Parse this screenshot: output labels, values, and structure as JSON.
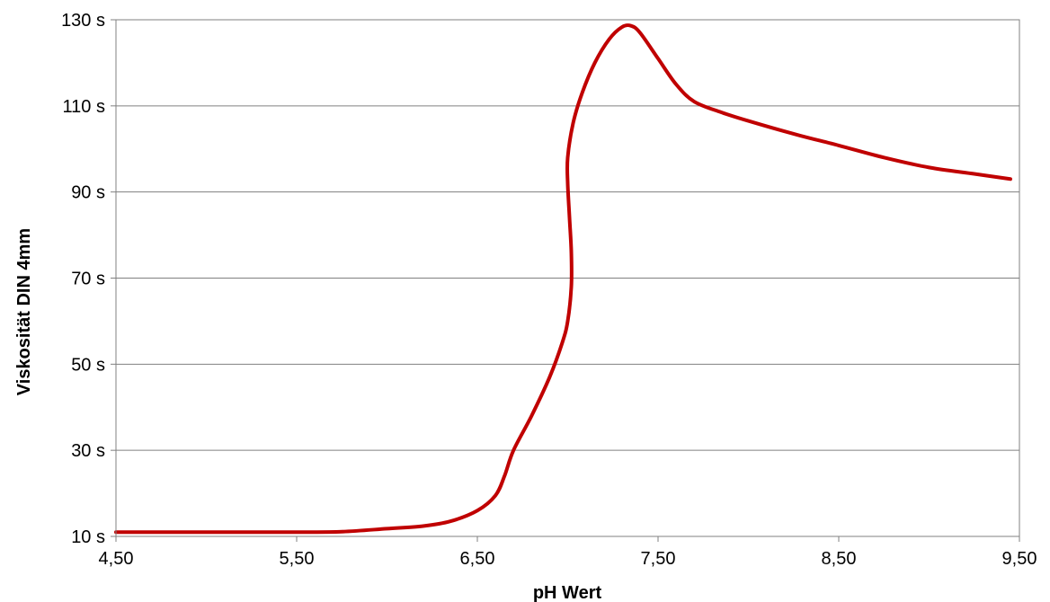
{
  "chart_data": {
    "type": "line",
    "title": "",
    "xlabel": "pH Wert",
    "ylabel": "Viskosität DIN 4mm",
    "xlim": [
      4.5,
      9.5
    ],
    "ylim": [
      10,
      130
    ],
    "x_ticks": [
      4.5,
      5.5,
      6.5,
      7.5,
      8.5,
      9.5
    ],
    "x_tick_labels": [
      "4,50",
      "5,50",
      "6,50",
      "7,50",
      "8,50",
      "9,50"
    ],
    "y_ticks": [
      10,
      30,
      50,
      70,
      90,
      110,
      130
    ],
    "y_tick_labels": [
      "10 s",
      "30 s",
      "50 s",
      "70 s",
      "90 s",
      "110 s",
      "130 s"
    ],
    "grid": "horizontal",
    "legend": "none",
    "series": [
      {
        "color": "#c00000",
        "points": [
          [
            4.5,
            11.0
          ],
          [
            5.0,
            11.0
          ],
          [
            5.5,
            11.0
          ],
          [
            5.75,
            11.1
          ],
          [
            6.0,
            11.8
          ],
          [
            6.2,
            12.4
          ],
          [
            6.35,
            13.5
          ],
          [
            6.5,
            16.0
          ],
          [
            6.6,
            19.5
          ],
          [
            6.65,
            24.0
          ],
          [
            6.7,
            30.0
          ],
          [
            6.8,
            38.0
          ],
          [
            6.9,
            47.0
          ],
          [
            6.97,
            55.0
          ],
          [
            7.0,
            60.0
          ],
          [
            7.02,
            68.0
          ],
          [
            7.02,
            76.0
          ],
          [
            7.01,
            84.0
          ],
          [
            7.0,
            92.0
          ],
          [
            7.0,
            98.0
          ],
          [
            7.03,
            106.0
          ],
          [
            7.08,
            113.0
          ],
          [
            7.15,
            120.0
          ],
          [
            7.23,
            125.5
          ],
          [
            7.3,
            128.3
          ],
          [
            7.35,
            128.6
          ],
          [
            7.4,
            127.0
          ],
          [
            7.5,
            121.0
          ],
          [
            7.6,
            115.0
          ],
          [
            7.7,
            111.0
          ],
          [
            7.85,
            108.5
          ],
          [
            8.0,
            106.5
          ],
          [
            8.25,
            103.5
          ],
          [
            8.5,
            100.8
          ],
          [
            8.75,
            98.0
          ],
          [
            9.0,
            95.7
          ],
          [
            9.25,
            94.2
          ],
          [
            9.45,
            93.0
          ]
        ]
      }
    ]
  }
}
